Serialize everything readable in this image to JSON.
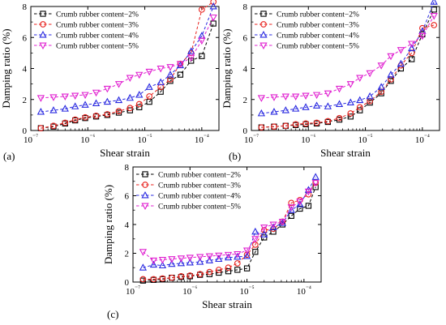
{
  "colors": {
    "series_2pct": "#000000",
    "series_3pct": "#e8221e",
    "series_4pct": "#2a2ae0",
    "series_5pct": "#e020d0"
  },
  "chart_data": [
    {
      "type": "line",
      "panel": "(a)",
      "xlabel": "Shear strain",
      "ylabel": "Damping ratio (%)",
      "xscale": "log",
      "xlim": [
        1e-07,
        0.0002
      ],
      "ylim": [
        0,
        8
      ],
      "yticks": [
        0,
        2,
        4,
        6,
        8
      ],
      "xtick_labels": [
        "10⁻⁷",
        "10⁻⁶",
        "10⁻⁵",
        "10⁻⁴"
      ],
      "legend": "top-left",
      "series": [
        {
          "name": "Crumb rubber content−2%",
          "marker": "square",
          "color": "#000000",
          "x": [
            1.5e-07,
            2.5e-07,
            4e-07,
            6e-07,
            9e-07,
            1.4e-06,
            2.2e-06,
            3.5e-06,
            5.5e-06,
            8e-06,
            1.2e-05,
            1.9e-05,
            2.8e-05,
            4.2e-05,
            6.5e-05,
            0.0001,
            0.00016
          ],
          "y": [
            0.15,
            0.25,
            0.45,
            0.65,
            0.8,
            0.9,
            1.0,
            1.15,
            1.3,
            1.5,
            1.85,
            2.5,
            3.2,
            3.6,
            4.5,
            4.8,
            6.9
          ]
        },
        {
          "name": "Crumb rubber content−3%",
          "marker": "circle",
          "color": "#e8221e",
          "x": [
            1.5e-07,
            2.5e-07,
            4e-07,
            6e-07,
            9e-07,
            1.4e-06,
            2.2e-06,
            3.5e-06,
            5.5e-06,
            8e-06,
            1.2e-05,
            1.9e-05,
            2.8e-05,
            4.2e-05,
            6.5e-05,
            0.0001,
            0.00016
          ],
          "y": [
            0.15,
            0.3,
            0.5,
            0.7,
            0.85,
            0.95,
            1.05,
            1.25,
            1.45,
            1.7,
            2.2,
            2.8,
            3.3,
            4.3,
            5.0,
            7.8,
            8.3
          ]
        },
        {
          "name": "Crumb rubber content−4%",
          "marker": "triangle-up",
          "color": "#2a2ae0",
          "x": [
            1.5e-07,
            2.5e-07,
            4e-07,
            6e-07,
            9e-07,
            1.4e-06,
            2.2e-06,
            3.5e-06,
            5.5e-06,
            8e-06,
            1.2e-05,
            1.9e-05,
            2.8e-05,
            4.2e-05,
            6.5e-05,
            0.0001,
            0.00016
          ],
          "y": [
            1.2,
            1.3,
            1.4,
            1.55,
            1.65,
            1.75,
            1.85,
            1.95,
            2.1,
            2.3,
            2.8,
            3.1,
            3.6,
            4.2,
            5.1,
            6.1,
            8.0
          ]
        },
        {
          "name": "Crumb rubber content−5%",
          "marker": "triangle-down",
          "color": "#e020d0",
          "x": [
            1.5e-07,
            2.5e-07,
            4e-07,
            6e-07,
            9e-07,
            1.4e-06,
            2.2e-06,
            3.5e-06,
            5.5e-06,
            8e-06,
            1.2e-05,
            1.9e-05,
            2.8e-05,
            4.2e-05,
            6.5e-05,
            0.0001,
            0.00016
          ],
          "y": [
            2.1,
            2.15,
            2.2,
            2.25,
            2.3,
            2.45,
            2.7,
            3.0,
            3.4,
            3.6,
            3.8,
            4.0,
            4.1,
            4.3,
            4.7,
            5.8,
            7.3
          ]
        }
      ]
    },
    {
      "type": "line",
      "panel": "(b)",
      "xlabel": "Shear strain",
      "ylabel": "Damping ratio (%)",
      "xscale": "log",
      "xlim": [
        1e-07,
        0.0002
      ],
      "ylim": [
        0,
        8
      ],
      "yticks": [
        0,
        2,
        4,
        6,
        8
      ],
      "xtick_labels": [
        "10⁻⁷",
        "10⁻⁶",
        "10⁻⁵",
        "10⁻⁴"
      ],
      "legend": "top-left",
      "series": [
        {
          "name": "Crumb rubber content−2%",
          "marker": "square",
          "color": "#000000",
          "x": [
            1.5e-07,
            2.5e-07,
            4e-07,
            6e-07,
            9e-07,
            1.4e-06,
            2.2e-06,
            3.5e-06,
            5.5e-06,
            8e-06,
            1.2e-05,
            1.9e-05,
            2.8e-05,
            4.2e-05,
            6.5e-05,
            0.0001,
            0.00016
          ],
          "y": [
            0.2,
            0.25,
            0.3,
            0.35,
            0.4,
            0.45,
            0.55,
            0.7,
            0.9,
            1.3,
            1.8,
            2.4,
            3.2,
            4.0,
            4.6,
            6.2,
            7.8
          ]
        },
        {
          "name": "Crumb rubber content−3%",
          "marker": "circle",
          "color": "#e8221e",
          "x": [
            1.5e-07,
            2.5e-07,
            4e-07,
            6e-07,
            9e-07,
            1.4e-06,
            2.2e-06,
            3.5e-06,
            5.5e-06,
            8e-06,
            1.2e-05,
            1.9e-05,
            2.8e-05,
            4.2e-05,
            6.5e-05,
            0.0001,
            0.00016
          ],
          "y": [
            0.2,
            0.25,
            0.3,
            0.4,
            0.45,
            0.5,
            0.6,
            0.8,
            1.1,
            1.5,
            1.9,
            2.5,
            3.3,
            4.2,
            5.0,
            6.6,
            6.8
          ]
        },
        {
          "name": "Crumb rubber content−4%",
          "marker": "triangle-up",
          "color": "#2a2ae0",
          "x": [
            1.5e-07,
            2.5e-07,
            4e-07,
            6e-07,
            9e-07,
            1.4e-06,
            2.2e-06,
            3.5e-06,
            5.5e-06,
            8e-06,
            1.2e-05,
            1.9e-05,
            2.8e-05,
            4.2e-05,
            6.5e-05,
            0.0001,
            0.00016
          ],
          "y": [
            1.1,
            1.2,
            1.3,
            1.4,
            1.5,
            1.6,
            1.55,
            1.7,
            1.8,
            1.95,
            2.2,
            2.8,
            3.6,
            4.3,
            5.3,
            6.4,
            8.3
          ]
        },
        {
          "name": "Crumb rubber content−5%",
          "marker": "triangle-down",
          "color": "#e020d0",
          "x": [
            1.5e-07,
            2.5e-07,
            4e-07,
            6e-07,
            9e-07,
            1.4e-06,
            2.2e-06,
            3.5e-06,
            5.5e-06,
            8e-06,
            1.2e-05,
            1.9e-05,
            2.8e-05,
            4.2e-05,
            6.5e-05,
            0.0001,
            0.00016
          ],
          "y": [
            2.1,
            2.15,
            2.2,
            2.2,
            2.25,
            2.3,
            2.4,
            2.7,
            3.0,
            3.4,
            3.7,
            4.2,
            4.8,
            5.2,
            5.6,
            6.1,
            7.4
          ]
        }
      ]
    },
    {
      "type": "line",
      "panel": "(c)",
      "xlabel": "Shear strain",
      "ylabel": "Damping ratio (%)",
      "xscale": "log",
      "xlim": [
        1e-07,
        0.0002
      ],
      "ylim": [
        0,
        8
      ],
      "yticks": [
        0,
        2,
        4,
        6,
        8
      ],
      "xtick_labels": [
        "10⁻⁷",
        "10⁻⁶",
        "10⁻⁵",
        "10⁻⁴"
      ],
      "legend": "top-left",
      "series": [
        {
          "name": "Crumb rubber content−2%",
          "marker": "square",
          "color": "#000000",
          "x": [
            1.5e-07,
            2.3e-07,
            3.3e-07,
            4.8e-07,
            7e-07,
            1e-06,
            1.5e-06,
            2.2e-06,
            3.2e-06,
            4.7e-06,
            6.8e-06,
            1e-05,
            1.4e-05,
            2e-05,
            2.9e-05,
            4.2e-05,
            6e-05,
            8.5e-05,
            0.00012,
            0.00016
          ],
          "y": [
            0.1,
            0.15,
            0.2,
            0.3,
            0.35,
            0.4,
            0.5,
            0.55,
            0.65,
            0.75,
            0.85,
            0.95,
            2.1,
            3.1,
            3.5,
            4.0,
            4.6,
            5.1,
            5.3,
            6.6
          ]
        },
        {
          "name": "Crumb rubber content−3%",
          "marker": "circle",
          "color": "#e8221e",
          "x": [
            1.5e-07,
            2.3e-07,
            3.3e-07,
            4.8e-07,
            7e-07,
            1e-06,
            1.5e-06,
            2.2e-06,
            3.2e-06,
            4.7e-06,
            6.8e-06,
            1e-05,
            1.4e-05,
            2e-05,
            2.9e-05,
            4.2e-05,
            6e-05,
            8.5e-05,
            0.00012,
            0.00016
          ],
          "y": [
            0.2,
            0.2,
            0.25,
            0.3,
            0.4,
            0.45,
            0.55,
            0.7,
            0.85,
            1.0,
            1.3,
            1.9,
            2.6,
            3.6,
            3.7,
            4.2,
            5.5,
            5.7,
            6.1,
            6.9
          ]
        },
        {
          "name": "Crumb rubber content−4%",
          "marker": "triangle-up",
          "color": "#2a2ae0",
          "x": [
            1.5e-07,
            2.3e-07,
            3.3e-07,
            4.8e-07,
            7e-07,
            1e-06,
            1.5e-06,
            2.2e-06,
            3.2e-06,
            4.7e-06,
            6.8e-06,
            1e-05,
            1.4e-05,
            2e-05,
            2.9e-05,
            4.2e-05,
            6e-05,
            8.5e-05,
            0.00012,
            0.00016
          ],
          "y": [
            1.0,
            1.2,
            1.15,
            1.25,
            1.3,
            1.35,
            1.4,
            1.5,
            1.6,
            1.7,
            1.75,
            1.8,
            3.5,
            3.3,
            3.8,
            4.1,
            5.0,
            5.4,
            6.4,
            7.3
          ]
        },
        {
          "name": "Crumb rubber content−5%",
          "marker": "triangle-down",
          "color": "#e020d0",
          "x": [
            1.5e-07,
            2.3e-07,
            3.3e-07,
            4.8e-07,
            7e-07,
            1e-06,
            1.5e-06,
            2.2e-06,
            3.2e-06,
            4.7e-06,
            6.8e-06,
            1e-05,
            1.4e-05,
            2e-05,
            2.9e-05,
            4.2e-05,
            6e-05,
            8.5e-05,
            0.00012,
            0.00016
          ],
          "y": [
            2.1,
            1.5,
            1.55,
            1.6,
            1.65,
            1.7,
            1.75,
            1.8,
            1.85,
            1.9,
            1.95,
            2.2,
            3.0,
            3.8,
            4.0,
            4.2,
            5.2,
            5.6,
            6.3,
            6.9
          ]
        }
      ]
    }
  ]
}
